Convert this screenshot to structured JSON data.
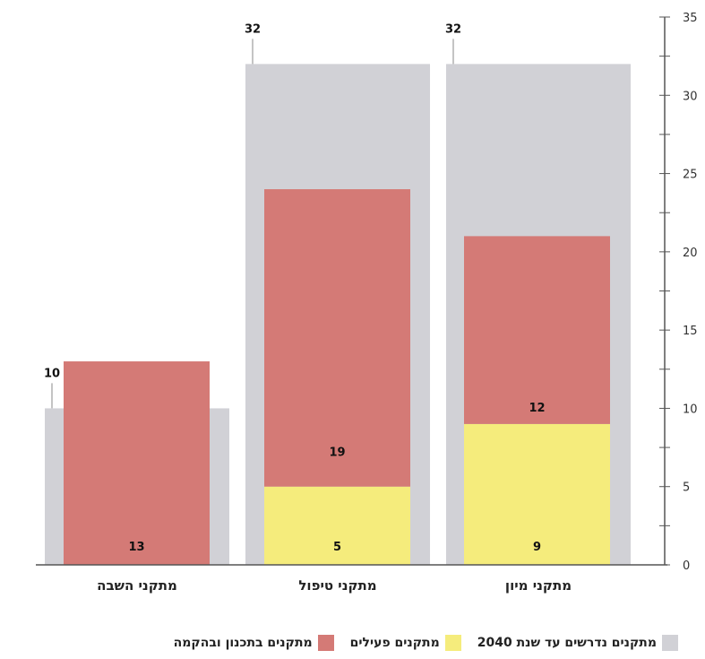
{
  "chart_data": {
    "type": "bar",
    "categories": [
      "מתקני מיון",
      "מתקני טיפול",
      "מתקני השבה"
    ],
    "series": [
      {
        "name": "מתקנים נדרשים עד שנת 2040",
        "values": [
          32,
          32,
          10
        ],
        "color": "#d1d1d6"
      },
      {
        "name": "מתקנים פעילים",
        "values": [
          9,
          5,
          0
        ],
        "color": "#f5ec7c"
      },
      {
        "name": "מתקנים בתכנון ובהקמה",
        "values": [
          12,
          19,
          13
        ],
        "color": "#d47a76"
      }
    ],
    "bar_labels": {
      "required": [
        "32",
        "32",
        "10"
      ],
      "active": [
        "9",
        "5",
        ""
      ],
      "planned": [
        "12",
        "19",
        "13"
      ]
    },
    "ylim": [
      0,
      35
    ],
    "yticks": [
      "0",
      "5",
      "10",
      "15",
      "20",
      "25",
      "30",
      "35"
    ],
    "y_axis_side": "right",
    "legend_placement": "bottom",
    "grid": false
  }
}
